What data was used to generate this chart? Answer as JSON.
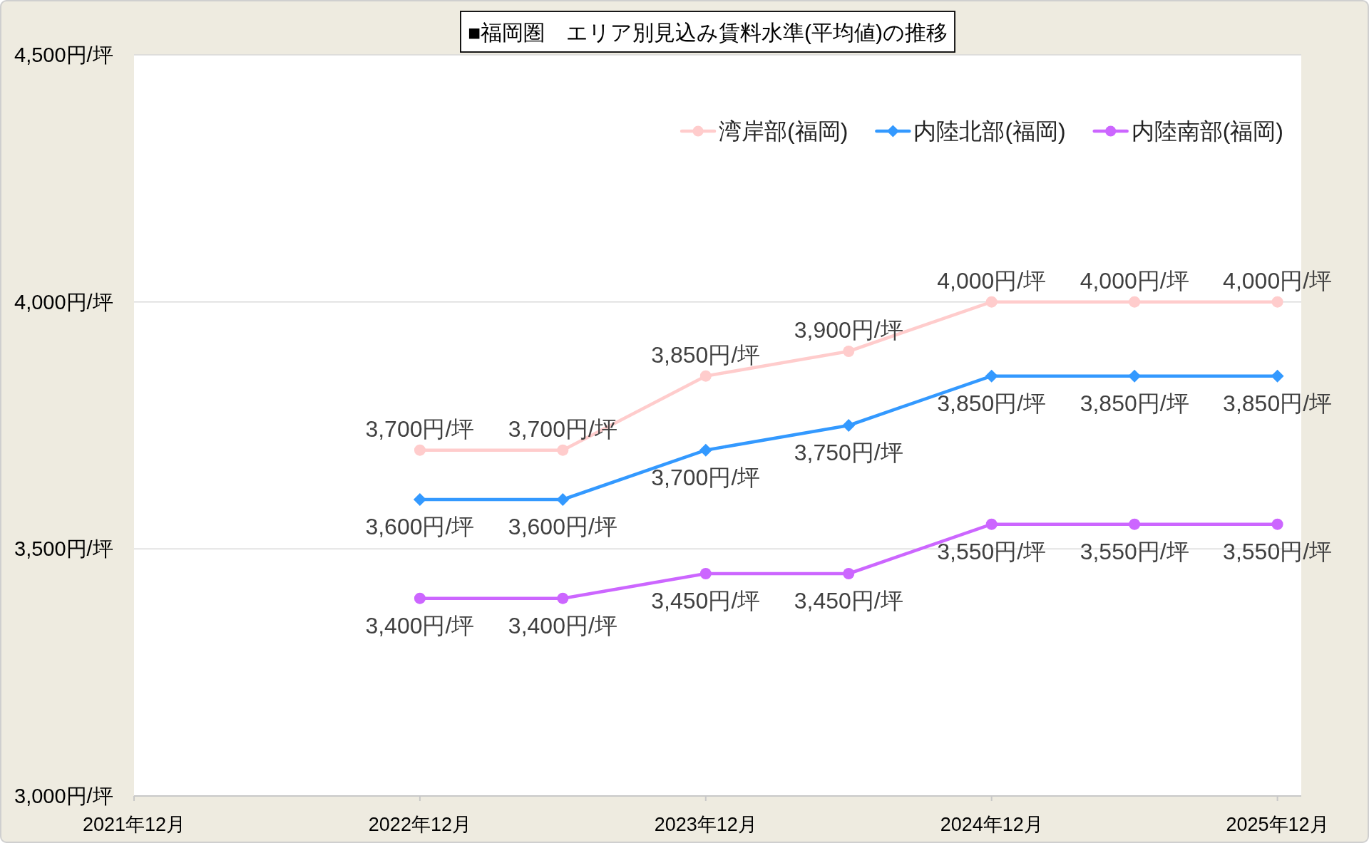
{
  "chart_data": {
    "type": "line",
    "title": "■福岡圏　エリア別見込み賃料水準(平均値)の推移",
    "x": [
      "2022-12",
      "2023-06",
      "2023-12",
      "2024-06",
      "2024-12",
      "2025-06",
      "2025-12"
    ],
    "xlim": [
      "2021-12",
      "2026-01"
    ],
    "xticks": [
      {
        "value": "2021-12",
        "label": "2021年12月"
      },
      {
        "value": "2022-12",
        "label": "2022年12月"
      },
      {
        "value": "2023-12",
        "label": "2023年12月"
      },
      {
        "value": "2024-12",
        "label": "2024年12月"
      },
      {
        "value": "2025-12",
        "label": "2025年12月"
      }
    ],
    "ylim": [
      3000,
      4500
    ],
    "yticks": [
      {
        "value": 3000,
        "label": "3,000円/坪"
      },
      {
        "value": 3500,
        "label": "3,500円/坪"
      },
      {
        "value": 4000,
        "label": "4,000円/坪"
      },
      {
        "value": 4500,
        "label": "4,500円/坪"
      }
    ],
    "grid": "y",
    "legend": "top right",
    "line_style": "solid",
    "series": [
      {
        "name": "湾岸部(福岡)",
        "color": "#ffcccc",
        "marker": "circle",
        "values": [
          3700,
          3700,
          3850,
          3900,
          4000,
          4000,
          4000
        ],
        "value_labels": [
          "3,700円/坪",
          "3,700円/坪",
          "3,850円/坪",
          "3,900円/坪",
          "4,000円/坪",
          "4,000円/坪",
          "4,000円/坪"
        ]
      },
      {
        "name": "内陸北部(福岡)",
        "color": "#3399ff",
        "marker": "diamond",
        "values": [
          3600,
          3600,
          3700,
          3750,
          3850,
          3850,
          3850
        ],
        "value_labels": [
          "3,600円/坪",
          "3,600円/坪",
          "3,700円/坪",
          "3,750円/坪",
          "3,850円/坪",
          "3,850円/坪",
          "3,850円/坪"
        ]
      },
      {
        "name": "内陸南部(福岡)",
        "color": "#cc66ff",
        "marker": "circle",
        "values": [
          3400,
          3400,
          3450,
          3450,
          3550,
          3550,
          3550
        ],
        "value_labels": [
          "3,400円/坪",
          "3,400円/坪",
          "3,450円/坪",
          "3,450円/坪",
          "3,550円/坪",
          "3,550円/坪",
          "3,550円/坪"
        ]
      }
    ]
  }
}
